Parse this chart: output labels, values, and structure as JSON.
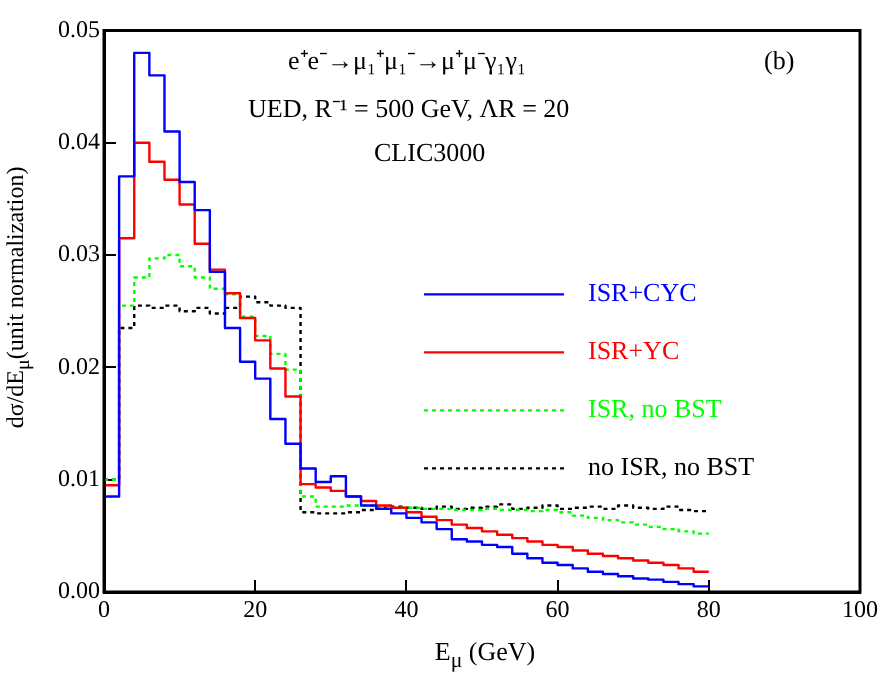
{
  "chart_data": {
    "type": "step",
    "xlabel": "E$_{μ}$ (GeV)",
    "ylabel": "dσ/dE$_{μ}$(unit normalization)",
    "annotations": [
      "e⁺e⁻→μ₁⁺μ₁⁻→μ⁺μ⁻γ₁γ₁",
      "(b)",
      "UED, R⁻¹ = 500 GeV, ΛR = 20",
      "CLIC3000"
    ],
    "x": [
      0,
      2,
      4,
      6,
      8,
      10,
      12,
      14,
      16,
      18,
      20,
      22,
      24,
      26,
      28,
      30,
      32,
      34,
      36,
      38,
      40,
      42,
      44,
      46,
      48,
      50,
      52,
      54,
      56,
      58,
      60,
      62,
      64,
      66,
      68,
      70,
      72,
      74,
      76,
      78,
      80
    ],
    "series": [
      {
        "name": "ISR+CYC",
        "color": "#0000ff",
        "line_style": "solid",
        "values": [
          0.0085,
          0.037,
          0.048,
          0.046,
          0.041,
          0.0365,
          0.034,
          0.0285,
          0.0235,
          0.0205,
          0.019,
          0.0154,
          0.0132,
          0.011,
          0.0098,
          0.0103,
          0.0085,
          0.0077,
          0.0074,
          0.007,
          0.0066,
          0.0062,
          0.0056,
          0.0047,
          0.0045,
          0.0042,
          0.004,
          0.0034,
          0.003,
          0.0026,
          0.0024,
          0.0021,
          0.0018,
          0.0016,
          0.0014,
          0.0012,
          0.0011,
          0.0009,
          0.0007,
          0.0005,
          0.0005
        ]
      },
      {
        "name": "ISR+YC",
        "color": "#ff0000",
        "line_style": "solid",
        "values": [
          0.0095,
          0.0315,
          0.04,
          0.0383,
          0.0367,
          0.0345,
          0.031,
          0.0287,
          0.0266,
          0.0244,
          0.0224,
          0.0199,
          0.0174,
          0.0096,
          0.0093,
          0.009,
          0.0085,
          0.0081,
          0.0077,
          0.0075,
          0.0071,
          0.0067,
          0.0064,
          0.006,
          0.0057,
          0.0054,
          0.0051,
          0.0048,
          0.0045,
          0.0042,
          0.004,
          0.0037,
          0.0034,
          0.0032,
          0.003,
          0.0028,
          0.0026,
          0.0024,
          0.0021,
          0.0018,
          0.0018
        ]
      },
      {
        "name": "ISR, no BST",
        "color": "#00ff00",
        "line_style": "dotted",
        "values": [
          0.01,
          0.0255,
          0.028,
          0.0297,
          0.03,
          0.029,
          0.028,
          0.027,
          0.0265,
          0.0245,
          0.0228,
          0.0212,
          0.0198,
          0.0085,
          0.0076,
          0.0076,
          0.0077,
          0.0077,
          0.0076,
          0.0075,
          0.0075,
          0.0074,
          0.0074,
          0.0073,
          0.0073,
          0.0074,
          0.0073,
          0.0073,
          0.0072,
          0.0073,
          0.0071,
          0.0068,
          0.0066,
          0.0064,
          0.0062,
          0.006,
          0.0058,
          0.0056,
          0.0054,
          0.0052,
          0.0052
        ]
      },
      {
        "name": "no ISR, no BST",
        "color": "#000000",
        "line_style": "dotted",
        "values": [
          0.01,
          0.0235,
          0.0255,
          0.0253,
          0.0255,
          0.025,
          0.0253,
          0.0248,
          0.0253,
          0.0263,
          0.0258,
          0.0255,
          0.0253,
          0.0071,
          0.007,
          0.007,
          0.0071,
          0.0073,
          0.0075,
          0.0076,
          0.0075,
          0.0074,
          0.0076,
          0.0074,
          0.0075,
          0.0076,
          0.0078,
          0.0074,
          0.0075,
          0.0077,
          0.0074,
          0.0075,
          0.0076,
          0.0074,
          0.0077,
          0.0075,
          0.0074,
          0.0076,
          0.0073,
          0.0072,
          0.0072
        ]
      }
    ],
    "xlim": [
      0,
      100
    ],
    "xticks": [
      0,
      20,
      40,
      60,
      80,
      100
    ],
    "ylim": [
      0,
      0.05
    ],
    "yticks": [
      {
        "value": 0,
        "label": "0.00"
      },
      {
        "value": 0.01,
        "label": "0.01"
      },
      {
        "value": 0.02,
        "label": "0.02"
      },
      {
        "value": 0.03,
        "label": "0.03"
      },
      {
        "value": 0.04,
        "label": "0.04"
      },
      {
        "value": 0.05,
        "label": "0.05"
      }
    ],
    "legend": "right",
    "grid": false
  }
}
